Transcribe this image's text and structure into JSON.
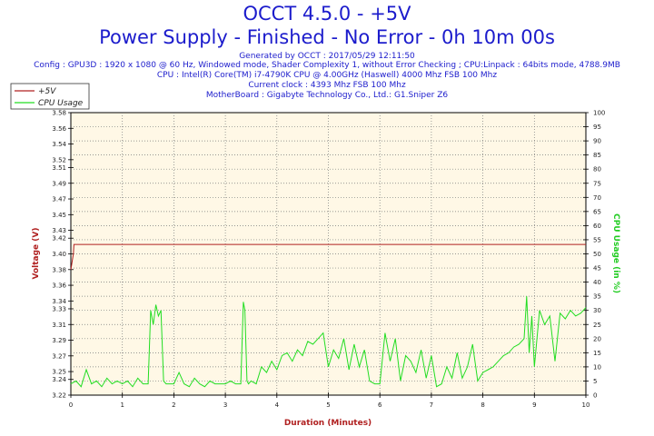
{
  "header": {
    "title": "OCCT 4.5.0 - +5V",
    "subtitle": "Power Supply - Finished - No Error - 0h 10m 00s",
    "generated": "Generated by OCCT : 2017/05/29 12:11:50",
    "config": "Config : GPU3D : 1920 x 1080 @ 60 Hz, Windowed mode, Shader Complexity 1, without Error Checking ; CPU:Linpack : 64bits mode, 4788.9MB",
    "cpu": "CPU : Intel(R) Core(TM) i7-4790K CPU @ 4.00GHz (Haswell) 4000 Mhz FSB 100 Mhz",
    "clock": "Current clock : 4393 Mhz FSB 100 Mhz",
    "motherboard": "MotherBoard : Gigabyte Technology Co., Ltd.: G1.Sniper Z6"
  },
  "colors": {
    "voltage": "#b02020",
    "cpu": "#22dd22",
    "plot_bg": "#fff8e6",
    "title": "#1c1ccc"
  },
  "chart_data": {
    "type": "line",
    "xlabel": "Duration (Minutes)",
    "ylabel_left": "Voltage (V)",
    "ylabel_right": "CPU Usage (in %)",
    "xlim": [
      0,
      10
    ],
    "ylim_left": [
      3.22,
      3.58
    ],
    "ylim_right": [
      0,
      100
    ],
    "x_ticks": [
      0,
      1,
      2,
      3,
      4,
      5,
      6,
      7,
      8,
      9,
      10
    ],
    "y_ticks_left": [
      3.22,
      3.24,
      3.25,
      3.27,
      3.29,
      3.31,
      3.33,
      3.34,
      3.36,
      3.38,
      3.4,
      3.42,
      3.43,
      3.45,
      3.47,
      3.49,
      3.51,
      3.52,
      3.54,
      3.56,
      3.58
    ],
    "y_tick_labels_left": [
      "3.22",
      "3.24",
      "3.25",
      "3.27",
      "3.29",
      "3.31",
      "3.33",
      "3.34",
      "3.36",
      "3.38",
      "3.40",
      "3.42",
      "3.43",
      "3.45",
      "3.47",
      "3.49",
      "3.51",
      "3.52",
      "3.54",
      "3.56",
      "3.58"
    ],
    "y_ticks_right": [
      0,
      5,
      10,
      15,
      20,
      25,
      30,
      35,
      40,
      45,
      50,
      55,
      60,
      65,
      70,
      75,
      80,
      85,
      90,
      95,
      100
    ],
    "grid": true,
    "legend": {
      "position": "top-left",
      "entries": [
        "+5V",
        "CPU Usage"
      ]
    },
    "series": [
      {
        "name": "+5V",
        "axis": "left",
        "x": [
          0.0,
          0.05,
          0.06,
          0.1,
          10.0
        ],
        "values": [
          3.38,
          3.4,
          3.412,
          3.412,
          3.412
        ]
      },
      {
        "name": "CPU Usage",
        "axis": "right",
        "x": [
          0.0,
          0.1,
          0.2,
          0.3,
          0.4,
          0.5,
          0.6,
          0.7,
          0.8,
          0.9,
          1.0,
          1.1,
          1.2,
          1.3,
          1.4,
          1.5,
          1.55,
          1.6,
          1.65,
          1.7,
          1.75,
          1.8,
          1.85,
          1.9,
          2.0,
          2.1,
          2.2,
          2.3,
          2.4,
          2.5,
          2.6,
          2.7,
          2.8,
          2.9,
          3.0,
          3.1,
          3.2,
          3.3,
          3.35,
          3.38,
          3.42,
          3.45,
          3.5,
          3.6,
          3.7,
          3.8,
          3.9,
          4.0,
          4.1,
          4.2,
          4.3,
          4.4,
          4.5,
          4.6,
          4.7,
          4.8,
          4.9,
          5.0,
          5.1,
          5.2,
          5.3,
          5.4,
          5.5,
          5.6,
          5.7,
          5.8,
          5.9,
          6.0,
          6.1,
          6.2,
          6.3,
          6.4,
          6.5,
          6.6,
          6.7,
          6.8,
          6.9,
          7.0,
          7.1,
          7.2,
          7.3,
          7.4,
          7.5,
          7.6,
          7.7,
          7.8,
          7.9,
          8.0,
          8.1,
          8.2,
          8.3,
          8.4,
          8.5,
          8.6,
          8.7,
          8.8,
          8.85,
          8.9,
          8.95,
          9.0,
          9.1,
          9.2,
          9.3,
          9.4,
          9.5,
          9.6,
          9.7,
          9.8,
          9.9,
          10.0
        ],
        "values": [
          4,
          5,
          3,
          9,
          4,
          5,
          3,
          6,
          4,
          5,
          4,
          5,
          3,
          6,
          4,
          4,
          30,
          25,
          32,
          28,
          30,
          5,
          4,
          4,
          4,
          8,
          4,
          3,
          6,
          4,
          3,
          5,
          4,
          4,
          4,
          5,
          4,
          4,
          33,
          30,
          5,
          4,
          5,
          4,
          10,
          8,
          12,
          9,
          14,
          15,
          12,
          16,
          14,
          19,
          18,
          20,
          22,
          10,
          16,
          13,
          20,
          9,
          18,
          10,
          16,
          5,
          4,
          4,
          22,
          12,
          20,
          5,
          14,
          12,
          8,
          16,
          6,
          14,
          3,
          4,
          10,
          6,
          15,
          6,
          10,
          18,
          5,
          8,
          9,
          10,
          12,
          14,
          15,
          17,
          18,
          20,
          35,
          15,
          28,
          10,
          30,
          25,
          28,
          12,
          29,
          27,
          30,
          28,
          29,
          31
        ]
      }
    ]
  }
}
